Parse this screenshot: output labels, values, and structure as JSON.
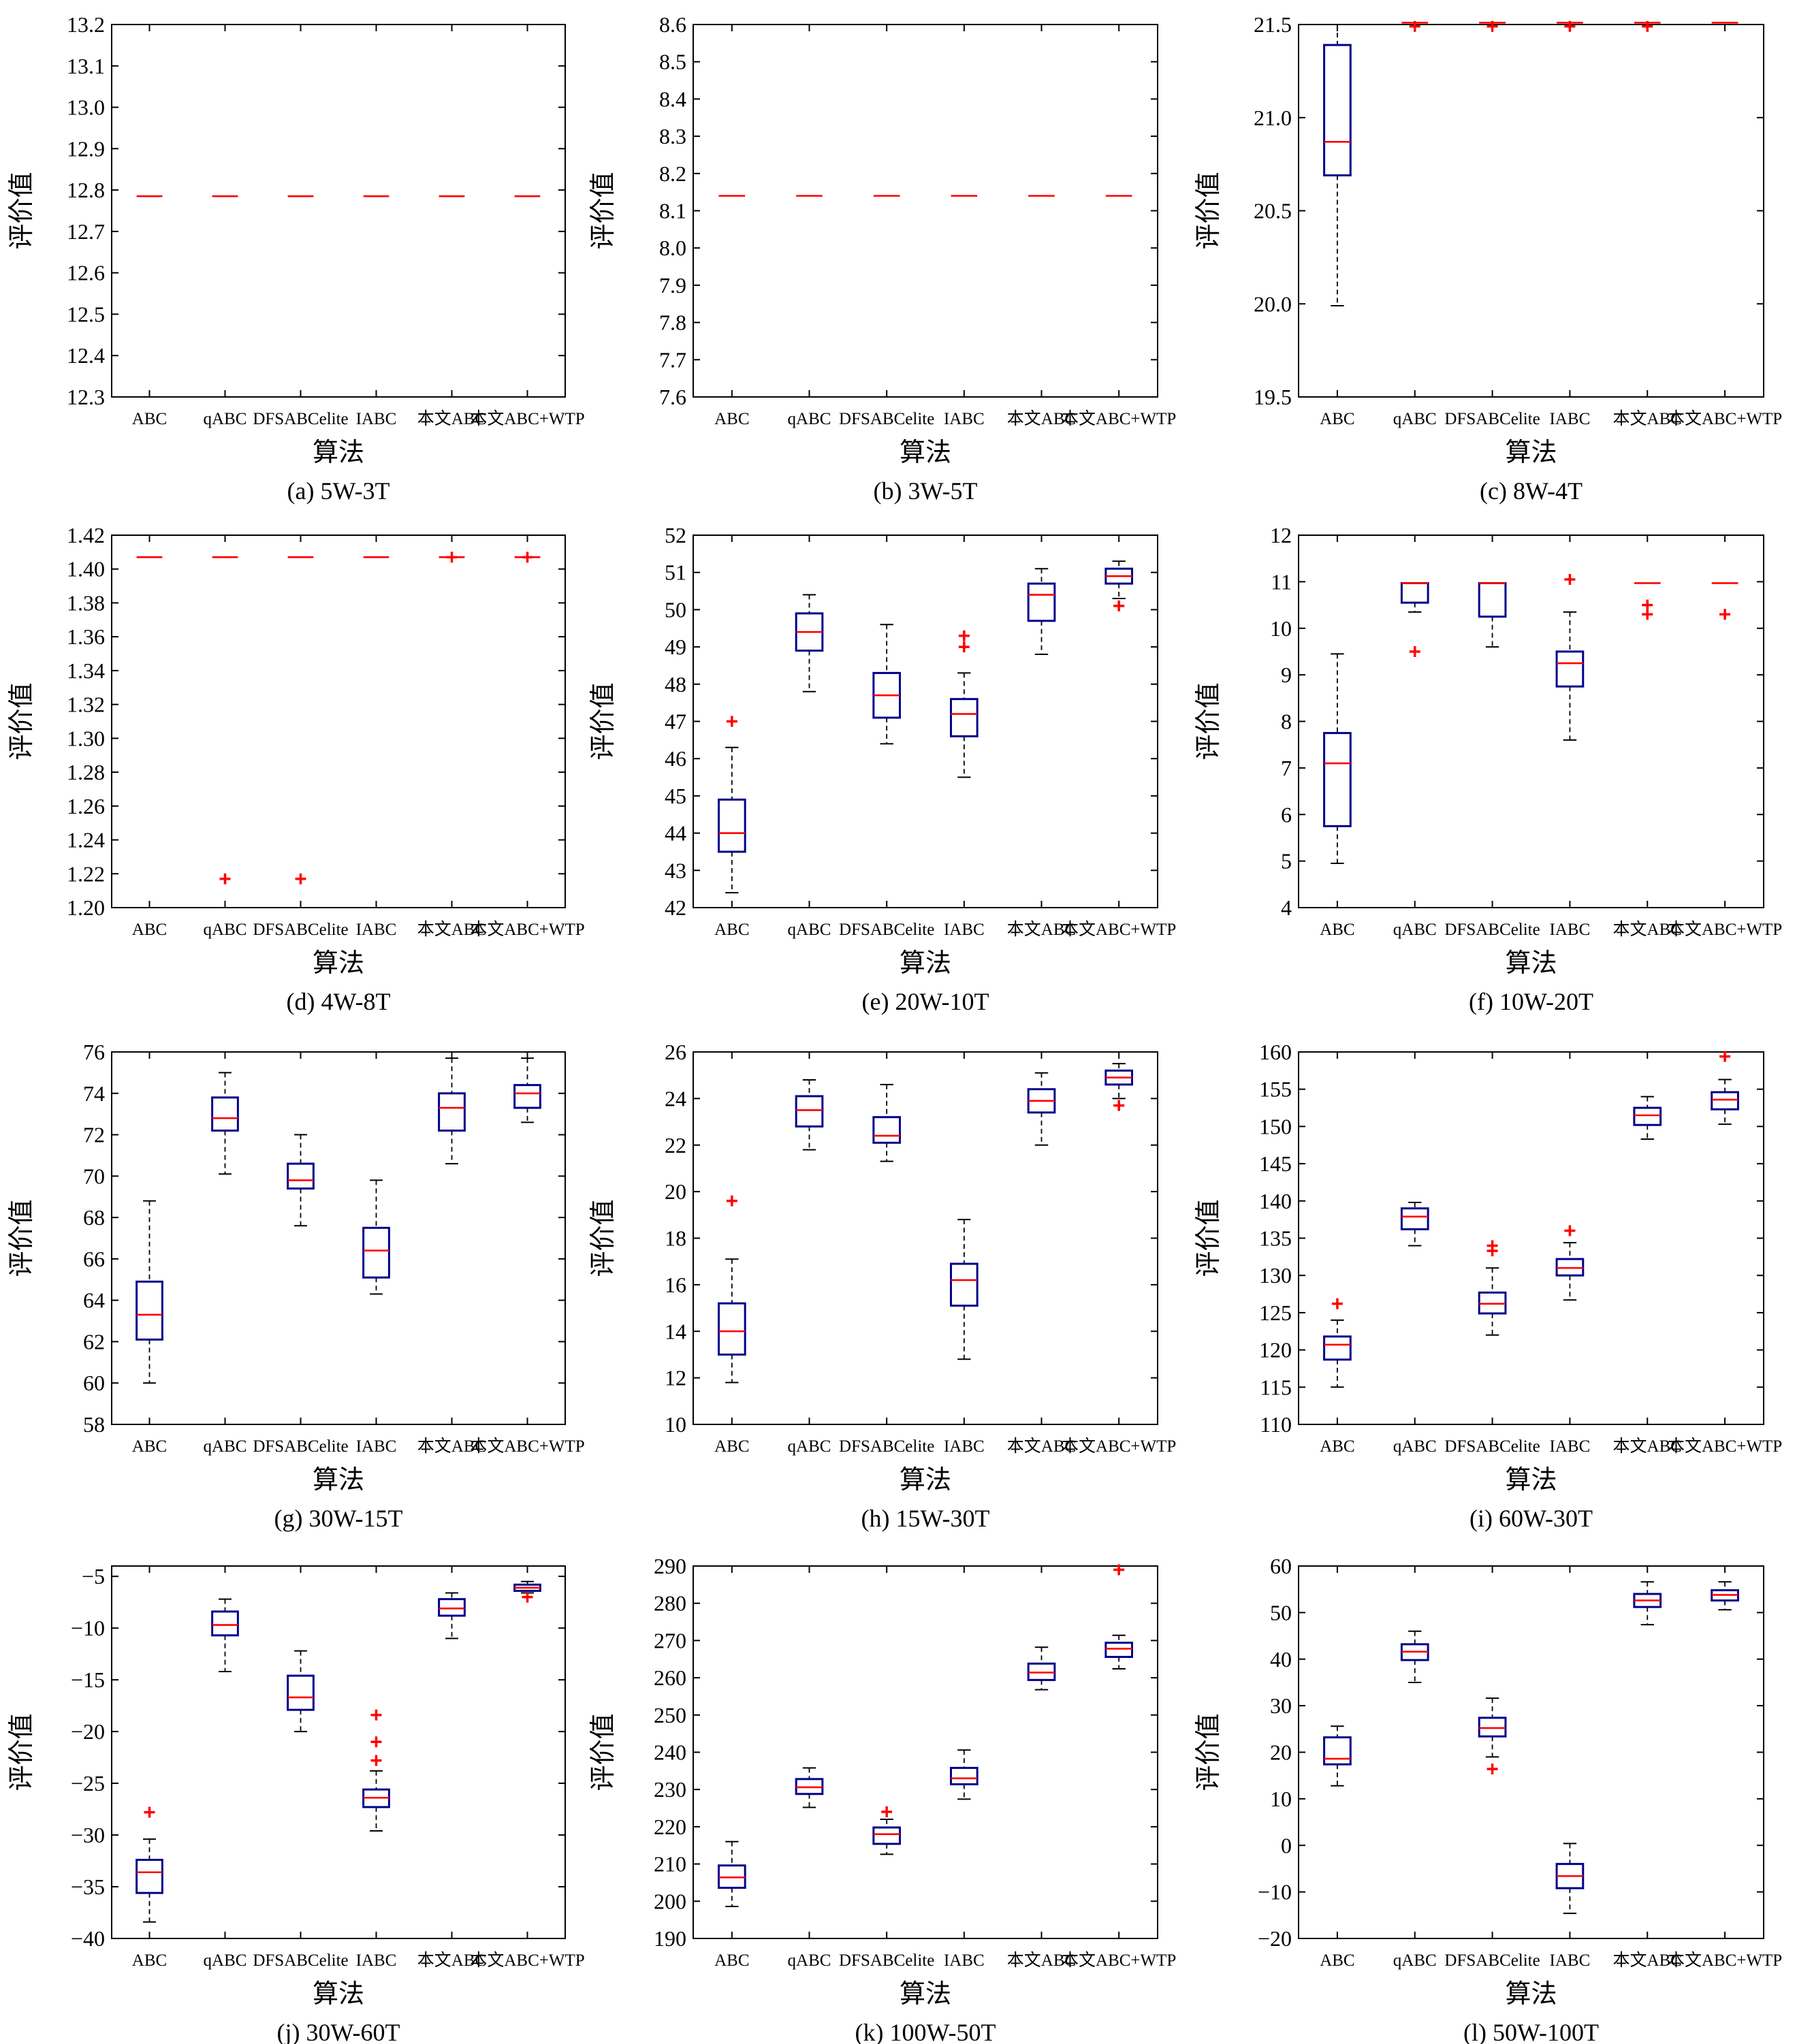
{
  "colors": {
    "box": "#00008b",
    "median": "#ff0000",
    "outlier": "#ff0000",
    "whisker": "#000000"
  },
  "chart_data": [
    {
      "type": "box",
      "caption": "(a) 5W-3T",
      "xlabel": "算法",
      "ylabel": "评价值",
      "categories": [
        "ABC",
        "qABC",
        "DFSABCelite",
        "IABC",
        "本文ABC",
        "本文ABC+WTP"
      ],
      "ylim": [
        12.3,
        13.2
      ],
      "ytick_step": 0.1,
      "ytick_decimals": 1,
      "boxes": [
        {
          "low": 12.785,
          "q1": 12.785,
          "median": 12.785,
          "q3": 12.785,
          "high": 12.785,
          "outliers": []
        },
        {
          "low": 12.785,
          "q1": 12.785,
          "median": 12.785,
          "q3": 12.785,
          "high": 12.785,
          "outliers": []
        },
        {
          "low": 12.785,
          "q1": 12.785,
          "median": 12.785,
          "q3": 12.785,
          "high": 12.785,
          "outliers": []
        },
        {
          "low": 12.785,
          "q1": 12.785,
          "median": 12.785,
          "q3": 12.785,
          "high": 12.785,
          "outliers": []
        },
        {
          "low": 12.785,
          "q1": 12.785,
          "median": 12.785,
          "q3": 12.785,
          "high": 12.785,
          "outliers": []
        },
        {
          "low": 12.785,
          "q1": 12.785,
          "median": 12.785,
          "q3": 12.785,
          "high": 12.785,
          "outliers": []
        }
      ]
    },
    {
      "type": "box",
      "caption": "(b) 3W-5T",
      "xlabel": "算法",
      "ylabel": "评价值",
      "categories": [
        "ABC",
        "qABC",
        "DFSABCelite",
        "IABC",
        "本文ABC",
        "本文ABC+WTP"
      ],
      "ylim": [
        7.6,
        8.6
      ],
      "ytick_step": 0.1,
      "ytick_decimals": 1,
      "boxes": [
        {
          "low": 8.14,
          "q1": 8.14,
          "median": 8.14,
          "q3": 8.14,
          "high": 8.14,
          "outliers": []
        },
        {
          "low": 8.14,
          "q1": 8.14,
          "median": 8.14,
          "q3": 8.14,
          "high": 8.14,
          "outliers": []
        },
        {
          "low": 8.14,
          "q1": 8.14,
          "median": 8.14,
          "q3": 8.14,
          "high": 8.14,
          "outliers": []
        },
        {
          "low": 8.14,
          "q1": 8.14,
          "median": 8.14,
          "q3": 8.14,
          "high": 8.14,
          "outliers": []
        },
        {
          "low": 8.14,
          "q1": 8.14,
          "median": 8.14,
          "q3": 8.14,
          "high": 8.14,
          "outliers": []
        },
        {
          "low": 8.14,
          "q1": 8.14,
          "median": 8.14,
          "q3": 8.14,
          "high": 8.14,
          "outliers": []
        }
      ]
    },
    {
      "type": "box",
      "caption": "(c) 8W-4T",
      "xlabel": "算法",
      "ylabel": "评价值",
      "categories": [
        "ABC",
        "qABC",
        "DFSABCelite",
        "IABC",
        "本文ABC",
        "本文ABC+WTP"
      ],
      "ylim": [
        19.5,
        21.5
      ],
      "ytick_step": 0.5,
      "ytick_decimals": 1,
      "boxes": [
        {
          "low": 19.99,
          "q1": 20.69,
          "median": 20.87,
          "q3": 21.39,
          "high": 21.5,
          "outliers": []
        },
        {
          "low": 21.51,
          "q1": 21.51,
          "median": 21.51,
          "q3": 21.51,
          "high": 21.51,
          "outliers": [
            21.49
          ]
        },
        {
          "low": 21.51,
          "q1": 21.51,
          "median": 21.51,
          "q3": 21.51,
          "high": 21.51,
          "outliers": [
            21.49
          ]
        },
        {
          "low": 21.51,
          "q1": 21.51,
          "median": 21.51,
          "q3": 21.51,
          "high": 21.51,
          "outliers": [
            21.49
          ]
        },
        {
          "low": 21.51,
          "q1": 21.51,
          "median": 21.51,
          "q3": 21.51,
          "high": 21.51,
          "outliers": [
            21.49
          ]
        },
        {
          "low": 21.51,
          "q1": 21.51,
          "median": 21.51,
          "q3": 21.51,
          "high": 21.51,
          "outliers": []
        }
      ]
    },
    {
      "type": "box",
      "caption": "(d) 4W-8T",
      "xlabel": "算法",
      "ylabel": "评价值",
      "categories": [
        "ABC",
        "qABC",
        "DFSABCelite",
        "IABC",
        "本文ABC",
        "本文ABC+WTP"
      ],
      "ylim": [
        1.2,
        1.42
      ],
      "ytick_step": 0.02,
      "ytick_decimals": 2,
      "boxes": [
        {
          "low": 1.407,
          "q1": 1.407,
          "median": 1.407,
          "q3": 1.407,
          "high": 1.407,
          "outliers": []
        },
        {
          "low": 1.407,
          "q1": 1.407,
          "median": 1.407,
          "q3": 1.407,
          "high": 1.407,
          "outliers": [
            1.217
          ]
        },
        {
          "low": 1.407,
          "q1": 1.407,
          "median": 1.407,
          "q3": 1.407,
          "high": 1.407,
          "outliers": [
            1.217
          ]
        },
        {
          "low": 1.407,
          "q1": 1.407,
          "median": 1.407,
          "q3": 1.407,
          "high": 1.407,
          "outliers": []
        },
        {
          "low": 1.407,
          "q1": 1.407,
          "median": 1.407,
          "q3": 1.407,
          "high": 1.407,
          "outliers": [
            1.407
          ]
        },
        {
          "low": 1.407,
          "q1": 1.407,
          "median": 1.407,
          "q3": 1.407,
          "high": 1.407,
          "outliers": [
            1.407
          ]
        }
      ]
    },
    {
      "type": "box",
      "caption": "(e) 20W-10T",
      "xlabel": "算法",
      "ylabel": "评价值",
      "categories": [
        "ABC",
        "qABC",
        "DFSABCelite",
        "IABC",
        "本文ABC",
        "本文ABC+WTP"
      ],
      "ylim": [
        42,
        52
      ],
      "ytick_step": 1,
      "ytick_decimals": 0,
      "boxes": [
        {
          "low": 42.4,
          "q1": 43.5,
          "median": 44.0,
          "q3": 44.9,
          "high": 46.3,
          "outliers": [
            47.0
          ]
        },
        {
          "low": 47.8,
          "q1": 48.9,
          "median": 49.4,
          "q3": 49.9,
          "high": 50.4,
          "outliers": []
        },
        {
          "low": 46.4,
          "q1": 47.1,
          "median": 47.7,
          "q3": 48.3,
          "high": 49.6,
          "outliers": []
        },
        {
          "low": 45.5,
          "q1": 46.6,
          "median": 47.2,
          "q3": 47.6,
          "high": 48.3,
          "outliers": [
            49.0,
            49.3
          ]
        },
        {
          "low": 48.8,
          "q1": 49.7,
          "median": 50.4,
          "q3": 50.7,
          "high": 51.1,
          "outliers": []
        },
        {
          "low": 50.3,
          "q1": 50.7,
          "median": 50.9,
          "q3": 51.1,
          "high": 51.3,
          "outliers": [
            50.1
          ]
        }
      ]
    },
    {
      "type": "box",
      "caption": "(f) 10W-20T",
      "xlabel": "算法",
      "ylabel": "评价值",
      "categories": [
        "ABC",
        "qABC",
        "DFSABCelite",
        "IABC",
        "本文ABC",
        "本文ABC+WTP"
      ],
      "ylim": [
        4,
        12
      ],
      "ytick_step": 1,
      "ytick_decimals": 0,
      "boxes": [
        {
          "low": 4.95,
          "q1": 5.75,
          "median": 7.1,
          "q3": 7.75,
          "high": 9.45,
          "outliers": []
        },
        {
          "low": 10.35,
          "q1": 10.55,
          "median": 10.97,
          "q3": 10.97,
          "high": 10.97,
          "outliers": [
            9.5
          ]
        },
        {
          "low": 9.6,
          "q1": 10.25,
          "median": 10.97,
          "q3": 10.97,
          "high": 10.97,
          "outliers": []
        },
        {
          "low": 7.6,
          "q1": 8.75,
          "median": 9.25,
          "q3": 9.5,
          "high": 10.35,
          "outliers": [
            11.05
          ]
        },
        {
          "low": 10.97,
          "q1": 10.97,
          "median": 10.97,
          "q3": 10.97,
          "high": 10.97,
          "outliers": [
            10.3,
            10.5
          ]
        },
        {
          "low": 10.97,
          "q1": 10.97,
          "median": 10.97,
          "q3": 10.97,
          "high": 10.97,
          "outliers": [
            10.3
          ]
        }
      ]
    },
    {
      "type": "box",
      "caption": "(g) 30W-15T",
      "xlabel": "算法",
      "ylabel": "评价值",
      "categories": [
        "ABC",
        "qABC",
        "DFSABCelite",
        "IABC",
        "本文ABC",
        "本文ABC+WTP"
      ],
      "ylim": [
        58,
        76
      ],
      "ytick_step": 2,
      "ytick_decimals": 0,
      "boxes": [
        {
          "low": 60.0,
          "q1": 62.1,
          "median": 63.3,
          "q3": 64.9,
          "high": 68.8,
          "outliers": []
        },
        {
          "low": 70.1,
          "q1": 72.2,
          "median": 72.8,
          "q3": 73.8,
          "high": 75.0,
          "outliers": []
        },
        {
          "low": 67.6,
          "q1": 69.4,
          "median": 69.8,
          "q3": 70.6,
          "high": 72.0,
          "outliers": []
        },
        {
          "low": 64.3,
          "q1": 65.1,
          "median": 66.4,
          "q3": 67.5,
          "high": 69.8,
          "outliers": []
        },
        {
          "low": 70.6,
          "q1": 72.2,
          "median": 73.3,
          "q3": 74.0,
          "high": 75.7,
          "outliers": []
        },
        {
          "low": 72.6,
          "q1": 73.3,
          "median": 74.0,
          "q3": 74.4,
          "high": 75.7,
          "outliers": []
        }
      ]
    },
    {
      "type": "box",
      "caption": "(h) 15W-30T",
      "xlabel": "算法",
      "ylabel": "评价值",
      "categories": [
        "ABC",
        "qABC",
        "DFSABCelite",
        "IABC",
        "本文ABC",
        "本文ABC+WTP"
      ],
      "ylim": [
        10,
        26
      ],
      "ytick_step": 2,
      "ytick_decimals": 0,
      "boxes": [
        {
          "low": 11.8,
          "q1": 13.0,
          "median": 14.0,
          "q3": 15.2,
          "high": 17.1,
          "outliers": [
            19.6
          ]
        },
        {
          "low": 21.8,
          "q1": 22.8,
          "median": 23.5,
          "q3": 24.1,
          "high": 24.8,
          "outliers": []
        },
        {
          "low": 21.3,
          "q1": 22.1,
          "median": 22.4,
          "q3": 23.2,
          "high": 24.6,
          "outliers": []
        },
        {
          "low": 12.8,
          "q1": 15.1,
          "median": 16.2,
          "q3": 16.9,
          "high": 18.8,
          "outliers": []
        },
        {
          "low": 22.0,
          "q1": 23.4,
          "median": 23.9,
          "q3": 24.4,
          "high": 25.1,
          "outliers": []
        },
        {
          "low": 24.0,
          "q1": 24.6,
          "median": 24.9,
          "q3": 25.2,
          "high": 25.5,
          "outliers": [
            23.7
          ]
        }
      ]
    },
    {
      "type": "box",
      "caption": "(i) 60W-30T",
      "xlabel": "算法",
      "ylabel": "评价值",
      "categories": [
        "ABC",
        "qABC",
        "DFSABCelite",
        "IABC",
        "本文ABC",
        "本文ABC+WTP"
      ],
      "ylim": [
        110,
        160
      ],
      "ytick_step": 5,
      "ytick_decimals": 0,
      "boxes": [
        {
          "low": 115.0,
          "q1": 118.7,
          "median": 120.7,
          "q3": 121.8,
          "high": 124.0,
          "outliers": [
            126.2
          ]
        },
        {
          "low": 134.0,
          "q1": 136.2,
          "median": 137.9,
          "q3": 139.0,
          "high": 139.8,
          "outliers": []
        },
        {
          "low": 122.0,
          "q1": 124.9,
          "median": 126.2,
          "q3": 127.7,
          "high": 131.0,
          "outliers": [
            133.3,
            134.0
          ]
        },
        {
          "low": 126.7,
          "q1": 130.0,
          "median": 131.0,
          "q3": 132.2,
          "high": 134.4,
          "outliers": [
            136.0
          ]
        },
        {
          "low": 148.3,
          "q1": 150.2,
          "median": 151.5,
          "q3": 152.5,
          "high": 154.0,
          "outliers": []
        },
        {
          "low": 150.3,
          "q1": 152.3,
          "median": 153.6,
          "q3": 154.6,
          "high": 156.3,
          "outliers": [
            159.4
          ]
        }
      ]
    },
    {
      "type": "box",
      "caption": "(j) 30W-60T",
      "xlabel": "算法",
      "ylabel": "评价值",
      "categories": [
        "ABC",
        "qABC",
        "DFSABCelite",
        "IABC",
        "本文ABC",
        "本文ABC+WTP"
      ],
      "ylim": [
        -40,
        -4
      ],
      "ytick_step": 5,
      "ytick_start": -40,
      "ytick_end": -5,
      "ytick_decimals": 0,
      "boxes": [
        {
          "low": -38.4,
          "q1": -35.6,
          "median": -33.6,
          "q3": -32.4,
          "high": -30.4,
          "outliers": [
            -27.8
          ]
        },
        {
          "low": -14.2,
          "q1": -10.7,
          "median": -9.7,
          "q3": -8.4,
          "high": -7.2,
          "outliers": []
        },
        {
          "low": -20.0,
          "q1": -17.9,
          "median": -16.7,
          "q3": -14.6,
          "high": -12.2,
          "outliers": []
        },
        {
          "low": -29.6,
          "q1": -27.3,
          "median": -26.4,
          "q3": -25.6,
          "high": -23.8,
          "outliers": [
            -18.4,
            -21.0,
            -22.8
          ]
        },
        {
          "low": -11.0,
          "q1": -8.8,
          "median": -8.1,
          "q3": -7.2,
          "high": -6.6,
          "outliers": []
        },
        {
          "low": -6.6,
          "q1": -6.4,
          "median": -6.1,
          "q3": -5.8,
          "high": -5.5,
          "outliers": [
            -7.0
          ]
        }
      ]
    },
    {
      "type": "box",
      "caption": "(k) 100W-50T",
      "xlabel": "算法",
      "ylabel": "评价值",
      "categories": [
        "ABC",
        "qABC",
        "DFSABCelite",
        "IABC",
        "本文ABC",
        "本文ABC+WTP"
      ],
      "ylim": [
        190,
        290
      ],
      "ytick_step": 10,
      "ytick_decimals": 0,
      "boxes": [
        {
          "low": 198.6,
          "q1": 203.6,
          "median": 206.4,
          "q3": 209.6,
          "high": 216.0,
          "outliers": []
        },
        {
          "low": 225.2,
          "q1": 228.8,
          "median": 230.6,
          "q3": 232.8,
          "high": 235.8,
          "outliers": []
        },
        {
          "low": 212.6,
          "q1": 215.4,
          "median": 218.0,
          "q3": 219.8,
          "high": 222.0,
          "outliers": [
            224.0
          ]
        },
        {
          "low": 227.4,
          "q1": 231.4,
          "median": 233.0,
          "q3": 235.8,
          "high": 240.6,
          "outliers": []
        },
        {
          "low": 256.8,
          "q1": 259.4,
          "median": 261.4,
          "q3": 263.8,
          "high": 268.2,
          "outliers": []
        },
        {
          "low": 262.4,
          "q1": 265.6,
          "median": 267.8,
          "q3": 269.4,
          "high": 271.4,
          "outliers": [
            289.0
          ]
        }
      ]
    },
    {
      "type": "box",
      "caption": "(l) 50W-100T",
      "xlabel": "算法",
      "ylabel": "评价值",
      "categories": [
        "ABC",
        "qABC",
        "DFSABCelite",
        "IABC",
        "本文ABC",
        "本文ABC+WTP"
      ],
      "ylim": [
        -20,
        60
      ],
      "ytick_step": 10,
      "ytick_decimals": 0,
      "boxes": [
        {
          "low": 12.8,
          "q1": 17.4,
          "median": 18.6,
          "q3": 23.2,
          "high": 25.6,
          "outliers": []
        },
        {
          "low": 35.0,
          "q1": 39.8,
          "median": 41.6,
          "q3": 43.2,
          "high": 46.0,
          "outliers": []
        },
        {
          "low": 19.0,
          "q1": 23.4,
          "median": 25.2,
          "q3": 27.4,
          "high": 31.6,
          "outliers": [
            16.4
          ]
        },
        {
          "low": -14.6,
          "q1": -9.2,
          "median": -6.6,
          "q3": -4.0,
          "high": 0.4,
          "outliers": []
        },
        {
          "low": 47.4,
          "q1": 51.2,
          "median": 52.6,
          "q3": 54.0,
          "high": 56.6,
          "outliers": []
        },
        {
          "low": 50.6,
          "q1": 52.6,
          "median": 53.8,
          "q3": 54.8,
          "high": 56.6,
          "outliers": []
        }
      ]
    }
  ]
}
